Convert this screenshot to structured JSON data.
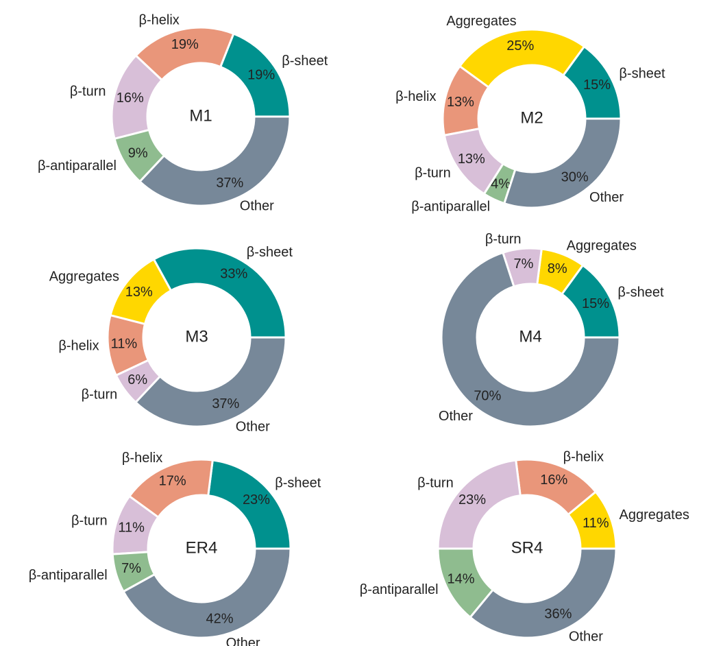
{
  "chart_data": [
    {
      "type": "pie",
      "title": "M1",
      "categories": [
        "β-sheet",
        "β-helix",
        "β-turn",
        "β-antiparallel",
        "Other"
      ],
      "values": [
        19,
        19,
        16,
        9,
        37
      ],
      "value_labels": [
        "19%",
        "19%",
        "16%",
        "9%",
        "37%"
      ],
      "colors": [
        "#00918e",
        "#e9967a",
        "#d8bfd8",
        "#8fbc8f",
        "#778899"
      ]
    },
    {
      "type": "pie",
      "title": "M2",
      "categories": [
        "β-sheet",
        "Aggregates",
        "β-helix",
        "β-turn",
        "β-antiparallel",
        "Other"
      ],
      "values": [
        15,
        25,
        13,
        13,
        4,
        30
      ],
      "value_labels": [
        "15%",
        "25%",
        "13%",
        "13%",
        "4%",
        "30%"
      ],
      "colors": [
        "#00918e",
        "#ffd700",
        "#e9967a",
        "#d8bfd8",
        "#8fbc8f",
        "#778899"
      ]
    },
    {
      "type": "pie",
      "title": "M3",
      "categories": [
        "β-sheet",
        "Aggregates",
        "β-helix",
        "β-turn",
        "Other"
      ],
      "values": [
        33,
        13,
        11,
        6,
        37
      ],
      "value_labels": [
        "33%",
        "13%",
        "11%",
        "6%",
        "37%"
      ],
      "colors": [
        "#00918e",
        "#ffd700",
        "#e9967a",
        "#d8bfd8",
        "#778899"
      ]
    },
    {
      "type": "pie",
      "title": "M4",
      "categories": [
        "β-sheet",
        "Aggregates",
        "β-turn",
        "Other"
      ],
      "values": [
        15,
        8,
        7,
        70
      ],
      "value_labels": [
        "15%",
        "8%",
        "7%",
        "70%"
      ],
      "colors": [
        "#00918e",
        "#ffd700",
        "#d8bfd8",
        "#778899"
      ]
    },
    {
      "type": "pie",
      "title": "ER4",
      "categories": [
        "β-sheet",
        "β-helix",
        "β-turn",
        "β-antiparallel",
        "Other"
      ],
      "values": [
        23,
        17,
        11,
        7,
        42
      ],
      "value_labels": [
        "23%",
        "17%",
        "11%",
        "7%",
        "42%"
      ],
      "colors": [
        "#00918e",
        "#e9967a",
        "#d8bfd8",
        "#8fbc8f",
        "#778899"
      ]
    },
    {
      "type": "pie",
      "title": "SR4",
      "categories": [
        "Aggregates",
        "β-helix",
        "β-turn",
        "β-antiparallel",
        "Other"
      ],
      "values": [
        11,
        16,
        23,
        14,
        36
      ],
      "value_labels": [
        "11%",
        "16%",
        "23%",
        "14%",
        "36%"
      ],
      "colors": [
        "#ffd700",
        "#e9967a",
        "#d8bfd8",
        "#8fbc8f",
        "#778899"
      ]
    }
  ]
}
